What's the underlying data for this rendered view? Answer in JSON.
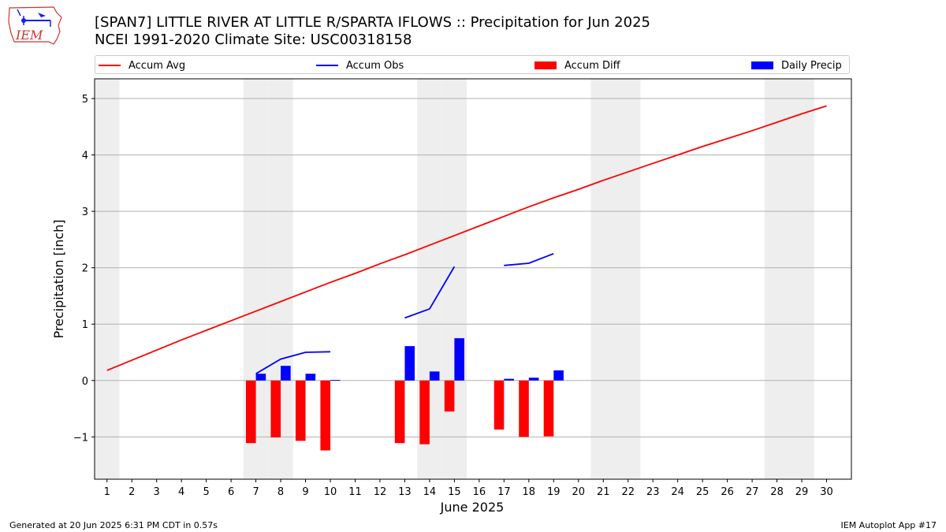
{
  "header": {
    "title_line1": "[SPAN7] LITTLE RIVER  AT LITTLE R/SPARTA IFLOWS :: Precipitation for Jun 2025",
    "title_line2": "NCEI 1991-2020 Climate Site: USC00318158",
    "logo_text": "IEM"
  },
  "legend": {
    "accum_avg": "Accum Avg",
    "accum_obs": "Accum Obs",
    "accum_diff": "Accum Diff",
    "daily_precip": "Daily Precip"
  },
  "footer": {
    "left": "Generated at 20 Jun 2025 6:31 PM CDT in 0.57s",
    "right": "IEM Autoplot App #17"
  },
  "colors": {
    "accum_avg": "#ff0000",
    "accum_obs": "#0000ff",
    "accum_diff": "#ff0000",
    "daily_precip": "#0000ff",
    "weekend_shade": "#eeeeee",
    "grid": "#b0b0b0"
  },
  "chart_data": {
    "type": "bar",
    "title": "[SPAN7] LITTLE RIVER  AT LITTLE R/SPARTA IFLOWS :: Precipitation for Jun 2025",
    "subtitle": "NCEI 1991-2020 Climate Site: USC00318158",
    "xlabel": "June 2025",
    "ylabel": "Precipitation [inch]",
    "xlim": [
      0.5,
      31
    ],
    "ylim": [
      -1.75,
      5.35
    ],
    "x_ticks": [
      1,
      2,
      3,
      4,
      5,
      6,
      7,
      8,
      9,
      10,
      11,
      12,
      13,
      14,
      15,
      16,
      17,
      18,
      19,
      20,
      21,
      22,
      23,
      24,
      25,
      26,
      27,
      28,
      29,
      30
    ],
    "y_ticks": [
      -1,
      0,
      1,
      2,
      3,
      4,
      5
    ],
    "y_tick_labels": [
      "−1",
      "0",
      "1",
      "2",
      "3",
      "4",
      "5"
    ],
    "grid": "horizontal",
    "legend_position": "top",
    "weekend_days": [
      1,
      7,
      8,
      14,
      15,
      21,
      22,
      28,
      29
    ],
    "accum_avg": {
      "name": "Accum Avg",
      "x": [
        1,
        2,
        3,
        4,
        5,
        6,
        7,
        8,
        9,
        10,
        11,
        12,
        13,
        14,
        15,
        16,
        17,
        18,
        19,
        20,
        21,
        22,
        23,
        24,
        25,
        26,
        27,
        28,
        29,
        30
      ],
      "values": [
        0.18,
        0.36,
        0.54,
        0.72,
        0.89,
        1.06,
        1.23,
        1.4,
        1.57,
        1.74,
        1.9,
        2.07,
        2.23,
        2.4,
        2.57,
        2.74,
        2.91,
        3.08,
        3.24,
        3.39,
        3.55,
        3.7,
        3.85,
        4.0,
        4.15,
        4.29,
        4.43,
        4.58,
        4.73,
        4.87
      ]
    },
    "accum_obs": {
      "name": "Accum Obs",
      "segments": [
        {
          "x": [
            7,
            8,
            9,
            10
          ],
          "values": [
            0.12,
            0.38,
            0.5,
            0.51
          ]
        },
        {
          "x": [
            13,
            14,
            15
          ],
          "values": [
            1.11,
            1.27,
            2.02
          ]
        },
        {
          "x": [
            17,
            18,
            19
          ],
          "values": [
            2.04,
            2.08,
            2.25
          ]
        }
      ]
    },
    "accum_diff": {
      "name": "Accum Diff",
      "x": [
        7,
        8,
        9,
        10,
        13,
        14,
        15,
        17,
        18,
        19
      ],
      "values": [
        -1.11,
        -1.01,
        -1.07,
        -1.24,
        -1.11,
        -1.13,
        -0.55,
        -0.87,
        -1.0,
        -0.99
      ]
    },
    "daily_precip": {
      "name": "Daily Precip",
      "x": [
        7,
        8,
        9,
        10,
        13,
        14,
        15,
        17,
        18,
        19
      ],
      "values": [
        0.12,
        0.26,
        0.12,
        0.01,
        0.61,
        0.16,
        0.75,
        0.03,
        0.05,
        0.18
      ]
    }
  }
}
